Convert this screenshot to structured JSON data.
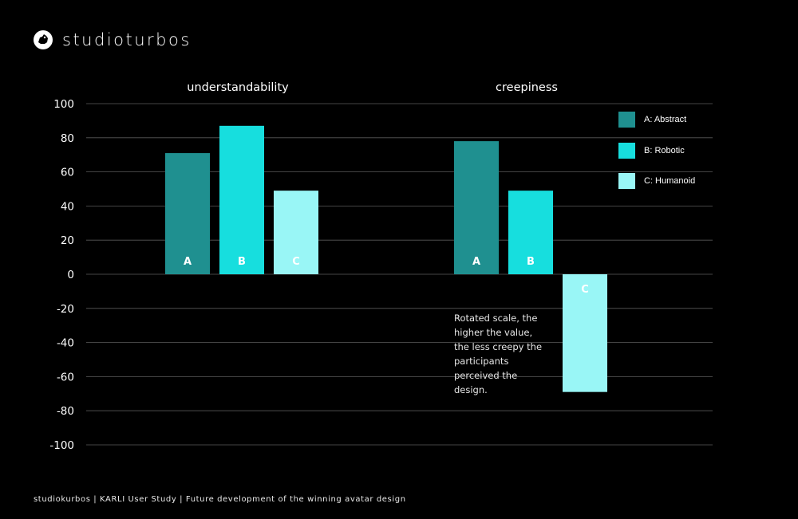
{
  "brand": {
    "name": "studioturbos"
  },
  "footer": {
    "text": "studiokurbos | KARLI User Study | Future development of the winning avatar design"
  },
  "note": {
    "text": "Rotated scale, the higher the value, the less creepy the participants perceived the design."
  },
  "chart_data": {
    "type": "bar",
    "ylim": [
      -100,
      100
    ],
    "yticks": [
      100,
      80,
      60,
      40,
      20,
      0,
      -20,
      -40,
      -60,
      -80,
      -100
    ],
    "grid": true,
    "legend_position": "top-right",
    "series": [
      {
        "name": "A: Abstract",
        "short": "A",
        "color": "#1f9090"
      },
      {
        "name": "B: Robotic",
        "short": "B",
        "color": "#17dede"
      },
      {
        "name": "C: Humanoid",
        "short": "C",
        "color": "#99f6f6"
      }
    ],
    "groups": [
      {
        "label": "understandability",
        "values": [
          71,
          87,
          49
        ]
      },
      {
        "label": "creepiness",
        "values": [
          78,
          49,
          -69
        ]
      }
    ]
  }
}
